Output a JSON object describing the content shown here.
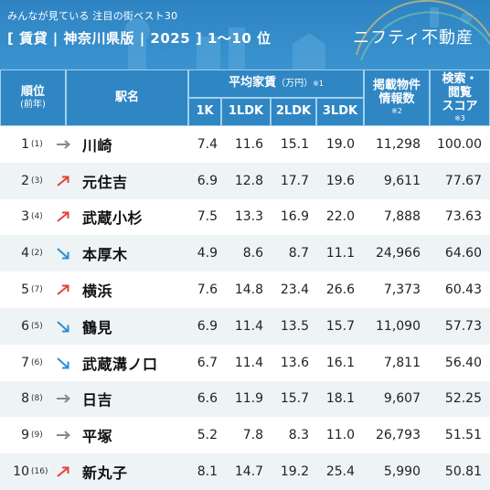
{
  "header": {
    "subtitle": "みんなが見ている 注目の街ベスト30",
    "title": "[ 賃貸 | 神奈川県版 | 2025 ]  1〜10 位",
    "brand": "ニフティ不動産"
  },
  "columns": {
    "rank": "順位",
    "rank_sub": "(前年)",
    "station": "駅名",
    "rent": "平均家賃",
    "rent_unit": "（万円）",
    "rent_note": "※1",
    "k1": "1K",
    "ldk1": "1LDK",
    "ldk2": "2LDK",
    "ldk3": "3LDK",
    "listings_l1": "掲載物件",
    "listings_l2": "情報数",
    "listings_note": "※2",
    "score_l1": "検索・",
    "score_l2": "閲覧",
    "score_l3": "スコア",
    "score_note": "※3"
  },
  "trend_colors": {
    "up": "#e0443a",
    "down": "#2a8fd4",
    "same": "#888888"
  },
  "rows": [
    {
      "rank": "1",
      "prev": "(1)",
      "trend": "same",
      "station": "川崎",
      "k1": "7.4",
      "ldk1": "11.6",
      "ldk2": "15.1",
      "ldk3": "19.0",
      "listings": "11,298",
      "score": "100.00"
    },
    {
      "rank": "2",
      "prev": "(3)",
      "trend": "up",
      "station": "元住吉",
      "k1": "6.9",
      "ldk1": "12.8",
      "ldk2": "17.7",
      "ldk3": "19.6",
      "listings": "9,611",
      "score": "77.67"
    },
    {
      "rank": "3",
      "prev": "(4)",
      "trend": "up",
      "station": "武蔵小杉",
      "k1": "7.5",
      "ldk1": "13.3",
      "ldk2": "16.9",
      "ldk3": "22.0",
      "listings": "7,888",
      "score": "73.63"
    },
    {
      "rank": "4",
      "prev": "(2)",
      "trend": "down",
      "station": "本厚木",
      "k1": "4.9",
      "ldk1": "8.6",
      "ldk2": "8.7",
      "ldk3": "11.1",
      "listings": "24,966",
      "score": "64.60"
    },
    {
      "rank": "5",
      "prev": "(7)",
      "trend": "up",
      "station": "横浜",
      "k1": "7.6",
      "ldk1": "14.8",
      "ldk2": "23.4",
      "ldk3": "26.6",
      "listings": "7,373",
      "score": "60.43"
    },
    {
      "rank": "6",
      "prev": "(5)",
      "trend": "down",
      "station": "鶴見",
      "k1": "6.9",
      "ldk1": "11.4",
      "ldk2": "13.5",
      "ldk3": "15.7",
      "listings": "11,090",
      "score": "57.73"
    },
    {
      "rank": "7",
      "prev": "(6)",
      "trend": "down",
      "station": "武蔵溝ノ口",
      "k1": "6.7",
      "ldk1": "11.4",
      "ldk2": "13.6",
      "ldk3": "16.1",
      "listings": "7,811",
      "score": "56.40"
    },
    {
      "rank": "8",
      "prev": "(8)",
      "trend": "same",
      "station": "日吉",
      "k1": "6.6",
      "ldk1": "11.9",
      "ldk2": "15.7",
      "ldk3": "18.1",
      "listings": "9,607",
      "score": "52.25"
    },
    {
      "rank": "9",
      "prev": "(9)",
      "trend": "same",
      "station": "平塚",
      "k1": "5.2",
      "ldk1": "7.8",
      "ldk2": "8.3",
      "ldk3": "11.0",
      "listings": "26,793",
      "score": "51.51"
    },
    {
      "rank": "10",
      "prev": "(16)",
      "trend": "up",
      "station": "新丸子",
      "k1": "8.1",
      "ldk1": "14.7",
      "ldk2": "19.2",
      "ldk3": "25.4",
      "listings": "5,990",
      "score": "50.81"
    }
  ]
}
